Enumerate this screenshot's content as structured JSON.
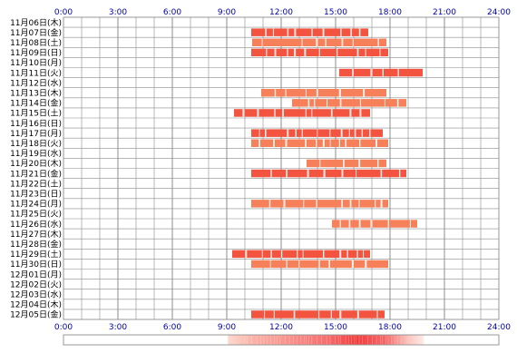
{
  "chart_data": {
    "type": "bar",
    "subtype": "daily-activity-timeline",
    "title": "",
    "xlabel": "",
    "ylabel": "",
    "xlim": [
      0,
      24
    ],
    "x_ticks": [
      "0:00",
      "3:00",
      "6:00",
      "9:00",
      "12:00",
      "15:00",
      "18:00",
      "21:00",
      "24:00"
    ],
    "grid": true,
    "legend": "none",
    "colors": {
      "dark": "#f2543f",
      "light": "#f5805a",
      "grid": "#8c8c8c",
      "tick": "#0000aa",
      "frame": "#999999"
    },
    "rows": [
      {
        "label": "11月06日(木)",
        "segments": []
      },
      {
        "label": "11月07日(金)",
        "segments": [
          [
            10.35,
            14.8,
            "dark"
          ],
          [
            14.8,
            16.8,
            "dark"
          ]
        ]
      },
      {
        "label": "11月08日(土)",
        "segments": [
          [
            10.4,
            12.0,
            "light"
          ],
          [
            12.0,
            17.8,
            "light"
          ]
        ]
      },
      {
        "label": "11月09日(日)",
        "segments": [
          [
            10.35,
            17.9,
            "dark"
          ]
        ]
      },
      {
        "label": "11月10日(月)",
        "segments": []
      },
      {
        "label": "11月11日(火)",
        "segments": [
          [
            15.2,
            19.8,
            "dark"
          ]
        ]
      },
      {
        "label": "11月12日(水)",
        "segments": []
      },
      {
        "label": "11月13日(木)",
        "segments": [
          [
            10.9,
            17.8,
            "light"
          ]
        ]
      },
      {
        "label": "11月14日(金)",
        "segments": [
          [
            12.6,
            18.9,
            "light"
          ]
        ]
      },
      {
        "label": "11月15日(土)",
        "segments": [
          [
            9.4,
            16.9,
            "dark"
          ]
        ]
      },
      {
        "label": "11月16日(日)",
        "segments": []
      },
      {
        "label": "11月17日(月)",
        "segments": [
          [
            10.35,
            17.6,
            "dark"
          ]
        ]
      },
      {
        "label": "11月18日(火)",
        "segments": [
          [
            10.35,
            17.9,
            "light"
          ]
        ]
      },
      {
        "label": "11月19日(水)",
        "segments": []
      },
      {
        "label": "11月20日(木)",
        "segments": [
          [
            13.4,
            17.8,
            "light"
          ]
        ]
      },
      {
        "label": "11月21日(金)",
        "segments": [
          [
            10.35,
            18.9,
            "dark"
          ]
        ]
      },
      {
        "label": "11月22日(土)",
        "segments": []
      },
      {
        "label": "11月23日(日)",
        "segments": []
      },
      {
        "label": "11月24日(月)",
        "segments": [
          [
            10.35,
            17.9,
            "light"
          ]
        ]
      },
      {
        "label": "11月25日(火)",
        "segments": []
      },
      {
        "label": "11月26日(水)",
        "segments": [
          [
            14.8,
            19.5,
            "light"
          ]
        ]
      },
      {
        "label": "11月27日(木)",
        "segments": []
      },
      {
        "label": "11月28日(金)",
        "segments": []
      },
      {
        "label": "11月29日(土)",
        "segments": [
          [
            9.3,
            16.9,
            "dark"
          ]
        ]
      },
      {
        "label": "11月30日(日)",
        "segments": [
          [
            10.35,
            17.9,
            "light"
          ]
        ]
      },
      {
        "label": "12月01日(月)",
        "segments": []
      },
      {
        "label": "12月02日(火)",
        "segments": []
      },
      {
        "label": "12月03日(水)",
        "segments": []
      },
      {
        "label": "12月04日(木)",
        "segments": []
      },
      {
        "label": "12月05日(金)",
        "segments": [
          [
            10.35,
            17.7,
            "dark"
          ]
        ]
      }
    ],
    "summary_gradient": {
      "start": 9.0,
      "end": 19.8,
      "peak_start": 14.5,
      "peak_end": 17.8
    }
  }
}
